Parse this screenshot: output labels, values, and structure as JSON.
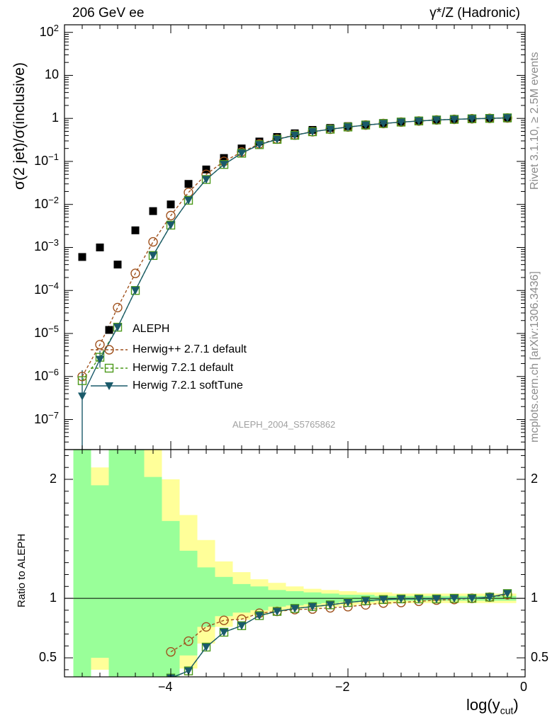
{
  "header": {
    "title_left": "206 GeV ee",
    "title_right": "γ*/Z (Hadronic)"
  },
  "side_labels": {
    "rivet": "Rivet 3.1.10, ≥ 2.5M events",
    "mcplots": "mcplots.cern.ch [arXiv:1306.3436]"
  },
  "watermark": "ALEPH_2004_S5765862",
  "legend": {
    "entries": [
      {
        "label": "ALEPH",
        "style": "data-square",
        "color": "#000000"
      },
      {
        "label": "Herwig++ 2.7.1 default",
        "style": "dashed-circle",
        "color": "#a0521e"
      },
      {
        "label": "Herwig 7.2.1 default",
        "style": "dashed-square",
        "color": "#4c9a1a"
      },
      {
        "label": "Herwig 7.2.1 softTune",
        "style": "solid-triangle",
        "color": "#1a5a6a"
      }
    ]
  },
  "chart_data": [
    {
      "type": "scatter",
      "panel": "main",
      "ylabel": "σ(2 jet)/σ(inclusive)",
      "yscale": "log",
      "ylim": [
        2e-08,
        150
      ],
      "xlim": [
        -5.2,
        0
      ],
      "ytick_labels": [
        "10^2",
        "10",
        "1",
        "10^-1",
        "10^-2",
        "10^-3",
        "10^-4",
        "10^-5",
        "10^-6",
        "10^-7"
      ],
      "x": [
        -5.0,
        -4.8,
        -4.6,
        -4.4,
        -4.2,
        -4.0,
        -3.8,
        -3.6,
        -3.4,
        -3.2,
        -3.0,
        -2.8,
        -2.6,
        -2.4,
        -2.2,
        -2.0,
        -1.8,
        -1.6,
        -1.4,
        -1.2,
        -1.0,
        -0.8,
        -0.6,
        -0.4,
        -0.2
      ],
      "series": [
        {
          "name": "ALEPH",
          "color": "#000000",
          "marker": "square",
          "values": [
            0.0006,
            0.001,
            0.0004,
            0.0025,
            0.007,
            0.01,
            0.03,
            0.065,
            0.12,
            0.2,
            0.29,
            0.37,
            0.45,
            0.54,
            0.6,
            0.66,
            0.72,
            0.78,
            0.84,
            0.89,
            0.93,
            0.96,
            0.98,
            0.99,
            1.0
          ]
        },
        {
          "name": "Herwig++ 2.7.1 default",
          "color": "#a0521e",
          "marker": "circle",
          "line": "dashed",
          "values": [
            1e-06,
            5.5e-06,
            4e-05,
            0.00025,
            0.00135,
            0.0055,
            0.019,
            0.05,
            0.1,
            0.165,
            0.255,
            0.33,
            0.41,
            0.49,
            0.56,
            0.63,
            0.7,
            0.76,
            0.82,
            0.87,
            0.92,
            0.95,
            0.98,
            1.0,
            1.02
          ]
        },
        {
          "name": "Herwig 7.2.1 default",
          "color": "#4c9a1a",
          "marker": "open-square",
          "line": "dashed",
          "values": [
            8e-07,
            2.8e-06,
            1.4e-05,
            0.0001,
            0.00065,
            0.0033,
            0.0125,
            0.038,
            0.085,
            0.155,
            0.245,
            0.325,
            0.405,
            0.49,
            0.56,
            0.63,
            0.7,
            0.76,
            0.82,
            0.87,
            0.92,
            0.95,
            0.98,
            1.0,
            1.03
          ]
        },
        {
          "name": "Herwig 7.2.1 softTune",
          "color": "#1a5a6a",
          "marker": "triangle-down",
          "line": "solid",
          "values": [
            3.5e-07,
            2.5e-06,
            1.4e-05,
            0.0001,
            0.00065,
            0.0033,
            0.0125,
            0.038,
            0.085,
            0.155,
            0.245,
            0.325,
            0.405,
            0.49,
            0.56,
            0.63,
            0.7,
            0.76,
            0.82,
            0.87,
            0.92,
            0.95,
            0.98,
            1.0,
            1.03
          ]
        }
      ]
    },
    {
      "type": "line",
      "panel": "ratio",
      "ylabel": "Ratio to ALEPH",
      "xlabel": "log(y_cut)",
      "ylim": [
        0.34,
        2.25
      ],
      "xlim": [
        -5.2,
        0
      ],
      "ytick_labels": [
        "0.5",
        "1",
        "2"
      ],
      "xtick_labels": [
        "−4",
        "−2",
        "0"
      ],
      "x": [
        -4.0,
        -3.8,
        -3.6,
        -3.4,
        -3.2,
        -3.0,
        -2.8,
        -2.6,
        -2.4,
        -2.2,
        -2.0,
        -1.8,
        -1.6,
        -1.4,
        -1.2,
        -1.0,
        -0.8,
        -0.6,
        -0.4,
        -0.2
      ],
      "uncertainty_bands": {
        "edges": [
          -5.1,
          -4.9,
          -4.7,
          -4.5,
          -4.3,
          -4.1,
          -3.9,
          -3.7,
          -3.5,
          -3.3,
          -3.1,
          -2.9,
          -2.7,
          -2.5,
          -2.3,
          -2.1,
          -1.9,
          -1.7,
          -1.5,
          -1.3,
          -1.1,
          -0.9,
          -0.7,
          -0.5,
          -0.3,
          -0.1
        ],
        "stat_hi": [
          2.25,
          1.95,
          2.25,
          2.25,
          2.02,
          1.65,
          1.4,
          1.26,
          1.18,
          1.12,
          1.1,
          1.07,
          1.06,
          1.05,
          1.04,
          1.03,
          1.03,
          1.02,
          1.02,
          1.02,
          1.02,
          1.02,
          1.02,
          1.02,
          1.02
        ],
        "stat_lo": [
          0.34,
          0.5,
          0.34,
          0.34,
          0.34,
          0.34,
          0.52,
          0.76,
          0.85,
          0.88,
          0.9,
          0.93,
          0.94,
          0.95,
          0.96,
          0.97,
          0.97,
          0.98,
          0.98,
          0.98,
          0.98,
          0.98,
          0.98,
          0.98,
          0.98
        ],
        "tot_hi": [
          2.45,
          2.1,
          2.45,
          2.45,
          2.3,
          2.0,
          1.7,
          1.49,
          1.31,
          1.22,
          1.16,
          1.13,
          1.1,
          1.08,
          1.07,
          1.06,
          1.05,
          1.05,
          1.04,
          1.04,
          1.04,
          1.04,
          1.04,
          1.04,
          1.04
        ],
        "tot_lo": [
          0.34,
          0.4,
          0.34,
          0.34,
          0.34,
          0.34,
          0.41,
          0.62,
          0.76,
          0.82,
          0.86,
          0.89,
          0.91,
          0.92,
          0.93,
          0.94,
          0.95,
          0.95,
          0.96,
          0.96,
          0.96,
          0.96,
          0.96,
          0.96,
          0.96
        ],
        "stat_color": "#99ff99",
        "total_color": "#ffff99"
      },
      "series": [
        {
          "name": "Herwig++ 2.7.1 default",
          "color": "#a0521e",
          "marker": "circle",
          "line": "dashed",
          "values": [
            0.55,
            0.64,
            0.76,
            0.815,
            0.825,
            0.875,
            0.89,
            0.905,
            0.91,
            0.92,
            0.93,
            0.945,
            0.96,
            0.965,
            0.975,
            0.985,
            0.99,
            1.0,
            1.01,
            1.03
          ]
        },
        {
          "name": "Herwig 7.2.1 default",
          "color": "#4c9a1a",
          "marker": "open-square",
          "line": "dashed",
          "values": [
            0.33,
            0.39,
            0.59,
            0.715,
            0.77,
            0.855,
            0.89,
            0.915,
            0.93,
            0.945,
            0.965,
            0.98,
            0.99,
            0.995,
            0.995,
            0.995,
            1.0,
            1.0,
            1.01,
            1.04
          ]
        },
        {
          "name": "Herwig 7.2.1 softTune",
          "color": "#1a5a6a",
          "marker": "triangle-down",
          "line": "solid",
          "values": [
            0.33,
            0.39,
            0.59,
            0.715,
            0.77,
            0.855,
            0.89,
            0.915,
            0.93,
            0.945,
            0.965,
            0.98,
            0.99,
            0.995,
            0.995,
            0.995,
            1.0,
            1.0,
            1.01,
            1.04
          ]
        }
      ]
    }
  ]
}
